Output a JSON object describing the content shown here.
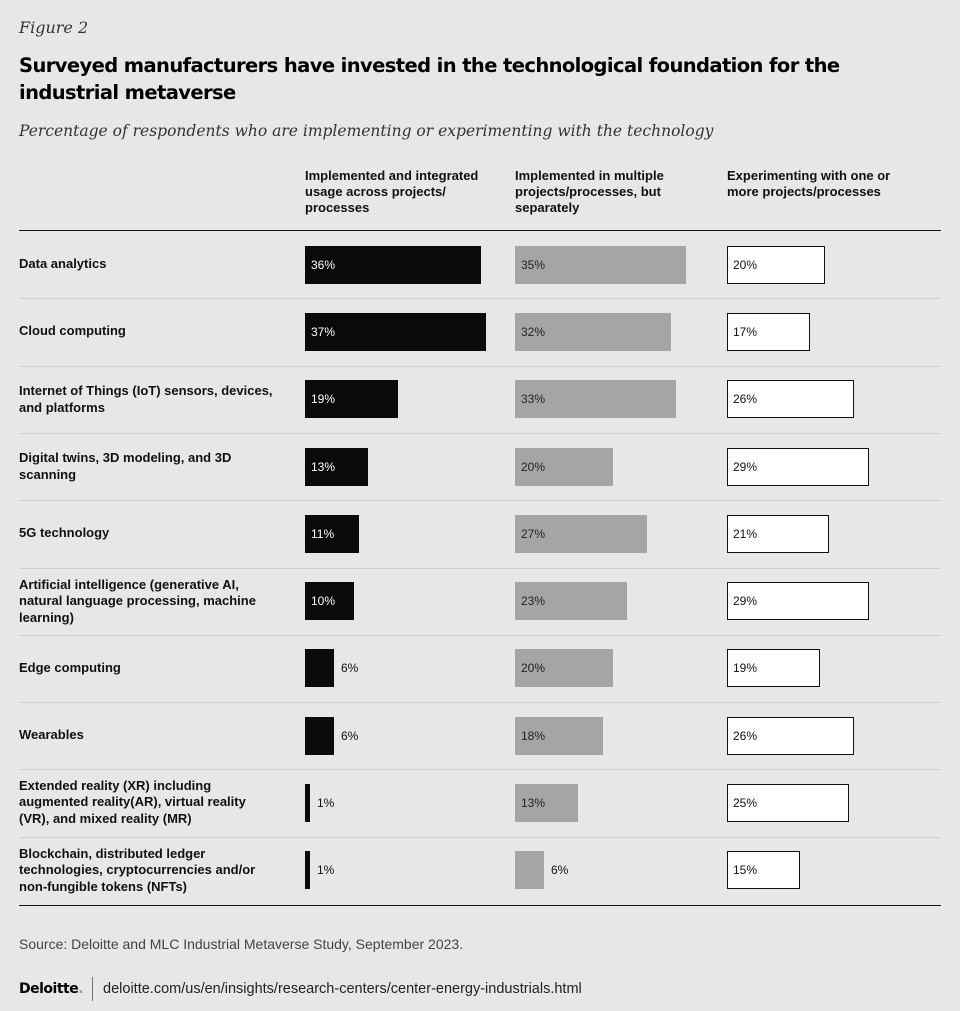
{
  "figure_label": "Figure 2",
  "footer": {
    "source": "Source: Deloitte and MLC Industrial Metaverse Study, September 2023.",
    "brand": "Deloitte",
    "brand_dot": ".",
    "url": "deloitte.com/us/en/insights/research-centers/center-energy-industrials.html"
  },
  "colors": {
    "series1": "#0a0a0a",
    "series2": "#a5a5a5",
    "series3": "#ffffff",
    "background": "#e7e7e8",
    "brand_accent": "#7dbb2f"
  },
  "chart_data": {
    "type": "bar",
    "orientation": "horizontal",
    "title": "Surveyed manufacturers have invested in the technological foundation for the industrial metaverse",
    "subtitle": "Percentage of respondents who are implementing or experimenting with the technology",
    "unit": "%",
    "categories": [
      "Data analytics",
      "Cloud computing",
      "Internet of Things (IoT) sensors, devices, and platforms",
      "Digital twins, 3D modeling, and 3D scanning",
      "5G technology",
      "Artificial intelligence (generative AI, natural language processing, machine learning)",
      "Edge computing",
      "Wearables",
      "Extended reality (XR) including augmented reality(AR), virtual reality (VR), and mixed reality (MR)",
      "Blockchain, distributed ledger technologies, cryptocurrencies and/or non-fungible tokens (NFTs)"
    ],
    "series": [
      {
        "name": "Implemented and integrated usage across projects/ processes",
        "values": [
          36,
          37,
          19,
          13,
          11,
          10,
          6,
          6,
          1,
          1
        ]
      },
      {
        "name": "Implemented in multiple projects/processes, but separately",
        "values": [
          35,
          32,
          33,
          20,
          27,
          23,
          20,
          18,
          13,
          6
        ]
      },
      {
        "name": "Experimenting with one or more projects/processes",
        "values": [
          20,
          17,
          26,
          29,
          21,
          29,
          19,
          26,
          25,
          15
        ]
      }
    ],
    "xlim": [
      0,
      40
    ],
    "grid": false,
    "legend": "column-headers"
  }
}
